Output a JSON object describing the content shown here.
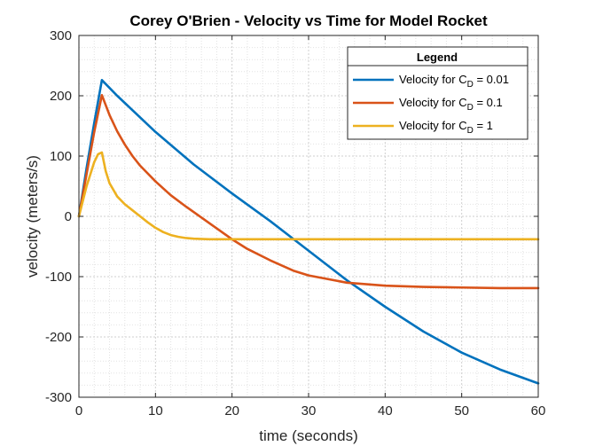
{
  "chart_data": {
    "type": "line",
    "title": "Corey O'Brien - Velocity vs Time for Model Rocket",
    "xlabel": "time (seconds)",
    "ylabel": "velocity (meters/s)",
    "xlim": [
      0,
      60
    ],
    "ylim": [
      -300,
      300
    ],
    "xticks": [
      0,
      10,
      20,
      30,
      40,
      50,
      60
    ],
    "yticks": [
      -300,
      -200,
      -100,
      0,
      100,
      200,
      300
    ],
    "xtick_labels": [
      "0",
      "10",
      "20",
      "30",
      "40",
      "50",
      "60"
    ],
    "ytick_labels": [
      "-300",
      "-200",
      "-100",
      "0",
      "100",
      "200",
      "300"
    ],
    "grid": "major and minor (dotted)",
    "legend": {
      "title": "Legend",
      "placement": "top-right"
    },
    "series": [
      {
        "name": "Velocity for C_D = 0.01",
        "label_main": "Velocity for C",
        "label_sub": "D",
        "label_tail": " = 0.01",
        "color": "#0072BD",
        "x": [
          0,
          1,
          2,
          3,
          5,
          10,
          15,
          20,
          25,
          30,
          35,
          40,
          45,
          50,
          55,
          60
        ],
        "y": [
          0,
          80,
          155,
          226,
          200,
          140,
          86,
          38,
          -8,
          -57,
          -106,
          -150,
          -191,
          -226,
          -254,
          -277
        ]
      },
      {
        "name": "Velocity for C_D = 0.1",
        "label_main": "Velocity for C",
        "label_sub": "D",
        "label_tail": " = 0.1",
        "color": "#D95319",
        "x": [
          0,
          1,
          2,
          3,
          4,
          5,
          6,
          7,
          8,
          10,
          12,
          14,
          16,
          18,
          20,
          22,
          25,
          28,
          30,
          35,
          40,
          45,
          50,
          55,
          60
        ],
        "y": [
          0,
          70,
          140,
          201,
          168,
          141,
          119,
          100,
          84,
          58,
          35,
          16,
          -2,
          -20,
          -38,
          -54,
          -73,
          -90,
          -98,
          -110,
          -115,
          -117,
          -118,
          -119,
          -119
        ]
      },
      {
        "name": "Velocity for C_D = 1",
        "label_main": "Velocity for C",
        "label_sub": "D",
        "label_tail": " = 1",
        "color": "#EDB120",
        "x": [
          0,
          1,
          2,
          2.5,
          3,
          3.5,
          4,
          5,
          6,
          7,
          8,
          9,
          10,
          11,
          12,
          13,
          14,
          15,
          17,
          20,
          25,
          30,
          40,
          50,
          60
        ],
        "y": [
          0,
          50,
          90,
          103,
          106,
          75,
          55,
          33,
          20,
          10,
          0,
          -10,
          -19,
          -26,
          -31,
          -34,
          -36,
          -37,
          -38,
          -38,
          -38,
          -38,
          -38,
          -38,
          -38
        ]
      }
    ]
  }
}
